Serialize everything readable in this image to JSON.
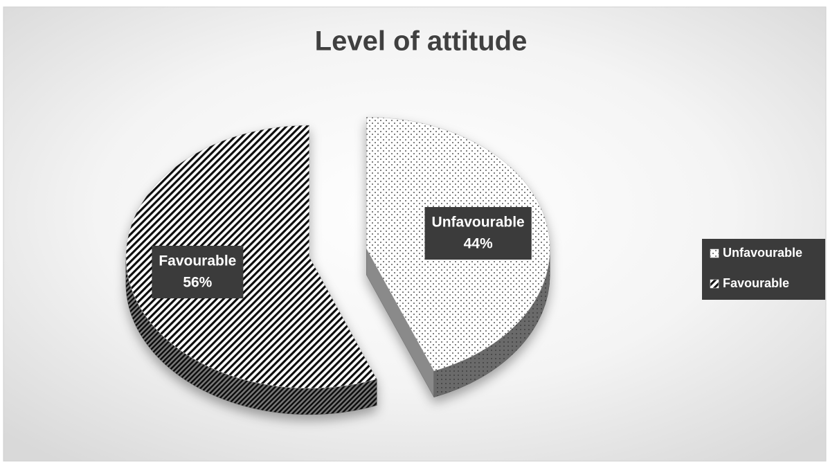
{
  "chart_data": {
    "type": "pie3d",
    "title": "Level of attitude",
    "categories": [
      "Unfavourable",
      "Favourable"
    ],
    "values": [
      44,
      56
    ],
    "value_labels": [
      "44%",
      "56%"
    ],
    "patterns": [
      "dotted",
      "diagonal-stripes"
    ],
    "legend": "right"
  }
}
